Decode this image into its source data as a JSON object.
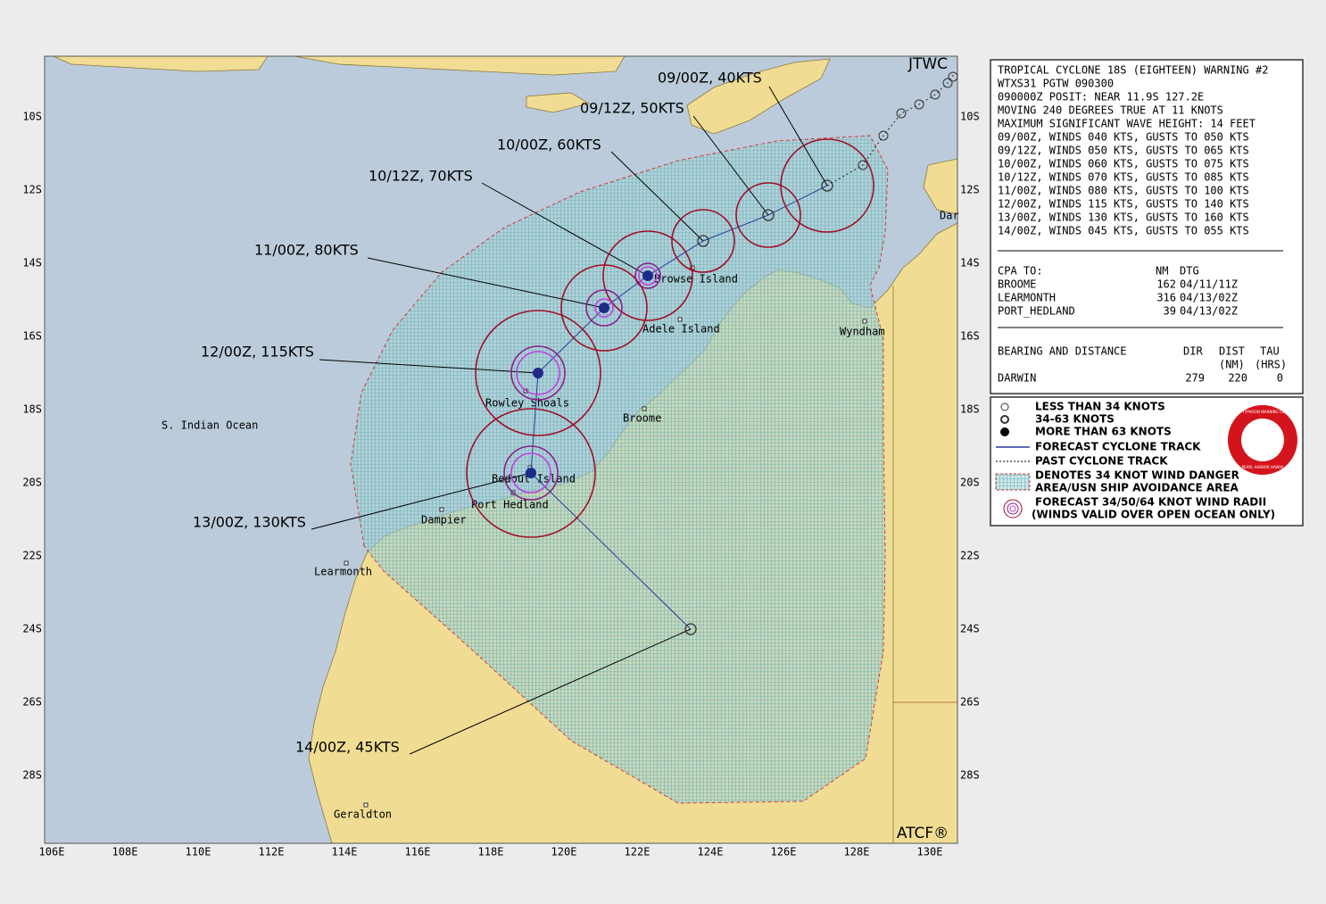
{
  "header": {
    "agency": "JTWC",
    "footer": "ATCF®"
  },
  "map": {
    "lon_labels": [
      "106E",
      "108E",
      "110E",
      "112E",
      "114E",
      "116E",
      "118E",
      "120E",
      "122E",
      "124E",
      "126E",
      "128E",
      "130E"
    ],
    "lat_labels": [
      "10S",
      "12S",
      "14S",
      "16S",
      "18S",
      "20S",
      "22S",
      "24S",
      "26S",
      "28S"
    ],
    "ocean_label": "S. Indian Ocean",
    "places": [
      "Browse Island",
      "Adele Island",
      "Rowley Shoals",
      "Broome",
      "Bedout Island",
      "Port Hedland",
      "Dampier",
      "Learmonth",
      "Geraldton",
      "Wyndham",
      "Dar"
    ]
  },
  "forecast": [
    "09/00Z, 40KTS",
    "09/12Z, 50KTS",
    "10/00Z, 60KTS",
    "10/12Z, 70KTS",
    "11/00Z, 80KTS",
    "12/00Z, 115KTS",
    "13/00Z, 130KTS",
    "14/00Z, 45KTS"
  ],
  "warning": {
    "lines": [
      "TROPICAL CYCLONE 18S (EIGHTEEN) WARNING #2",
      "WTXS31 PGTW 090300",
      "090000Z POSIT: NEAR 11.9S 127.2E",
      "MOVING 240 DEGREES TRUE AT 11 KNOTS",
      "MAXIMUM SIGNIFICANT WAVE HEIGHT: 14 FEET",
      "09/00Z, WINDS 040 KTS, GUSTS TO 050 KTS",
      "09/12Z, WINDS 050 KTS, GUSTS TO 065 KTS",
      "10/00Z, WINDS 060 KTS, GUSTS TO 075 KTS",
      "10/12Z, WINDS 070 KTS, GUSTS TO 085 KTS",
      "11/00Z, WINDS 080 KTS, GUSTS TO 100 KTS",
      "12/00Z, WINDS 115 KTS, GUSTS TO 140 KTS",
      "13/00Z, WINDS 130 KTS, GUSTS TO 160 KTS",
      "14/00Z, WINDS 045 KTS, GUSTS TO 055 KTS"
    ],
    "cpa_header": [
      "CPA TO:",
      "NM",
      "DTG"
    ],
    "cpa_rows": [
      [
        "BROOME",
        "162",
        "04/11/11Z"
      ],
      [
        "LEARMONTH",
        "316",
        "04/13/02Z"
      ],
      [
        "PORT_HEDLAND",
        "39",
        "04/13/02Z"
      ]
    ],
    "bearing_header": [
      "BEARING AND DISTANCE",
      "DIR",
      "DIST",
      "TAU"
    ],
    "bearing_units": [
      "(NM)",
      "(HRS)"
    ],
    "bearing_rows": [
      [
        "DARWIN",
        "279",
        "220",
        "0"
      ]
    ]
  },
  "legend": {
    "items": [
      "LESS THAN 34 KNOTS",
      "34-63 KNOTS",
      "MORE THAN 63 KNOTS",
      "FORECAST CYCLONE TRACK",
      "PAST CYCLONE TRACK",
      "DENOTES 34 KNOT WIND DANGER",
      "AREA/USN SHIP AVOIDANCE AREA",
      "FORECAST 34/50/64 KNOT WIND RADII",
      "(WINDS VALID OVER OPEN OCEAN ONLY)"
    ],
    "logo": [
      "JOINT TYPHOON WARNING CENTER",
      "PEARL HARBOR HAWAII"
    ]
  }
}
